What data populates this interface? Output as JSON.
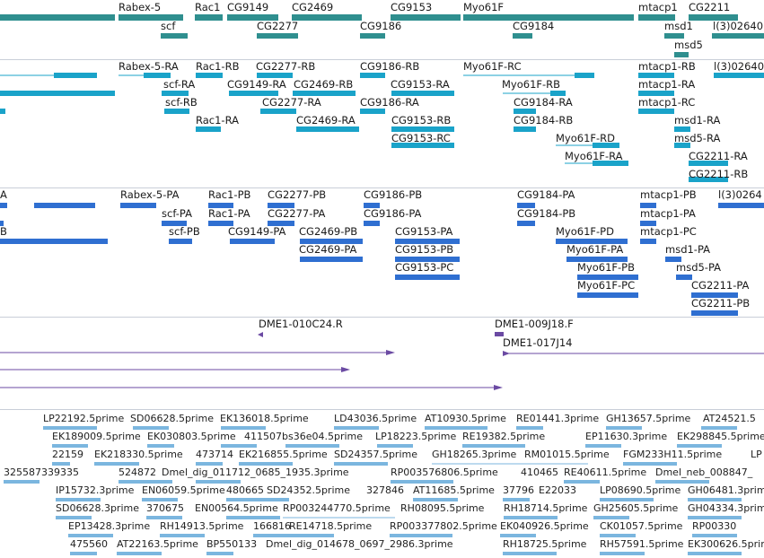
{
  "colors": {
    "gene": "#2f8f8f",
    "transcript": "#1aa3c9",
    "protein": "#2f6fd1",
    "clone": "#6b4aa3",
    "est": "#7bb6df"
  },
  "genes_track": {
    "labels": [
      "Rabex-5",
      "Rac1",
      "CG9149",
      "CG2469",
      "CG9153",
      "Myo61F",
      "mtacp1",
      "CG2211",
      "scf",
      "CG2277",
      "CG9186",
      "CG9184",
      "msd1",
      "msd5",
      "l(3)02640"
    ]
  },
  "transcripts_track": {
    "labels": [
      "Rabex-5-RA",
      "Rac1-RB",
      "CG2277-RB",
      "CG9186-RB",
      "Myo61F-RC",
      "mtacp1-RB",
      "l(3)02640",
      "scf-RA",
      "CG9149-RA",
      "CG2469-RB",
      "CG9153-RA",
      "Myo61F-RB",
      "mtacp1-RA",
      "scf-RB",
      "CG2277-RA",
      "CG9186-RA",
      "CG9184-RA",
      "mtacp1-RC",
      "Rac1-RA",
      "CG2469-RA",
      "CG9153-RB",
      "CG9184-RB",
      "msd1-RA",
      "CG9153-RC",
      "Myo61F-RD",
      "msd5-RA",
      "Myo61F-RA",
      "CG2211-RA",
      "CG2211-RB"
    ]
  },
  "proteins_track": {
    "labels": [
      "A",
      "Rabex-5-PA",
      "Rac1-PB",
      "CG2277-PB",
      "CG9186-PB",
      "CG9184-PA",
      "mtacp1-PB",
      "l(3)0264",
      "scf-PA",
      "Rac1-PA",
      "CG2277-PA",
      "CG9186-PA",
      "CG9184-PB",
      "mtacp1-PA",
      "B",
      "scf-PB",
      "CG9149-PA",
      "CG2469-PB",
      "CG9153-PA",
      "Myo61F-PD",
      "mtacp1-PC",
      "CG2469-PA",
      "CG9153-PB",
      "Myo61F-PA",
      "msd1-PA",
      "CG9153-PC",
      "Myo61F-PB",
      "msd5-PA",
      "Myo61F-PC",
      "CG2211-PA",
      "CG2211-PB"
    ]
  },
  "clones_track": {
    "labels": [
      "DME1-010C24.R",
      "DME1-009J18.F",
      "DME1-017J14"
    ]
  },
  "ests_track": {
    "labels": [
      "LP22192.5prime",
      "SD06628.5prime",
      "EK136018.5prime",
      "LD43036.5prime",
      "AT10930.5prime",
      "RE01441.3prime",
      "GH13657.5prime",
      "AT24521.5",
      "EK189009.5prime",
      "EK030803.5prime",
      "411507bs36e04.5prime",
      "LP18223.5prime",
      "RE19382.5prime",
      "EP11630.3prime",
      "EK298845.5prime",
      "22159",
      "EK218330.5prime",
      "473714",
      "EK216855.5prime",
      "SD24357.5prime",
      "GH18265.3prime",
      "RM01015.5prime",
      "FGM233H11.5prime",
      "LP",
      "325587",
      "339335",
      "524872",
      "Dmel_dig_011712_0685_1935.3prime",
      "RP003576806.5prime",
      "410465",
      "RE40611.5prime",
      "Dmel_neb_008847_",
      "IP15732.3prime",
      "EN06059.5prime",
      "480665",
      "SD24352.5prime",
      "327846",
      "AT11685.5prime",
      "37796",
      "E22033",
      "LP08690.5prime",
      "GH06481.3prime",
      "SD06628.3prime",
      "370675",
      "EN00564.5prime",
      "RP003244770.5prime",
      "RH08095.5prime",
      "RH18714.5prime",
      "GH25605.5prime",
      "GH04334.3prime",
      "EP13428.3prime",
      "RH14913.5prime",
      "166816",
      "RE14718.5prime",
      "RP003377802.5prime",
      "EK040926.5prime",
      "CK01057.5prime",
      "RP00330",
      "475560",
      "AT22163.5prime",
      "BP550133",
      "Dmel_dig_014678_0697_2986.3prime",
      "RH18725.5prime",
      "RH57591.5prime",
      "EK300626.5prime"
    ]
  }
}
